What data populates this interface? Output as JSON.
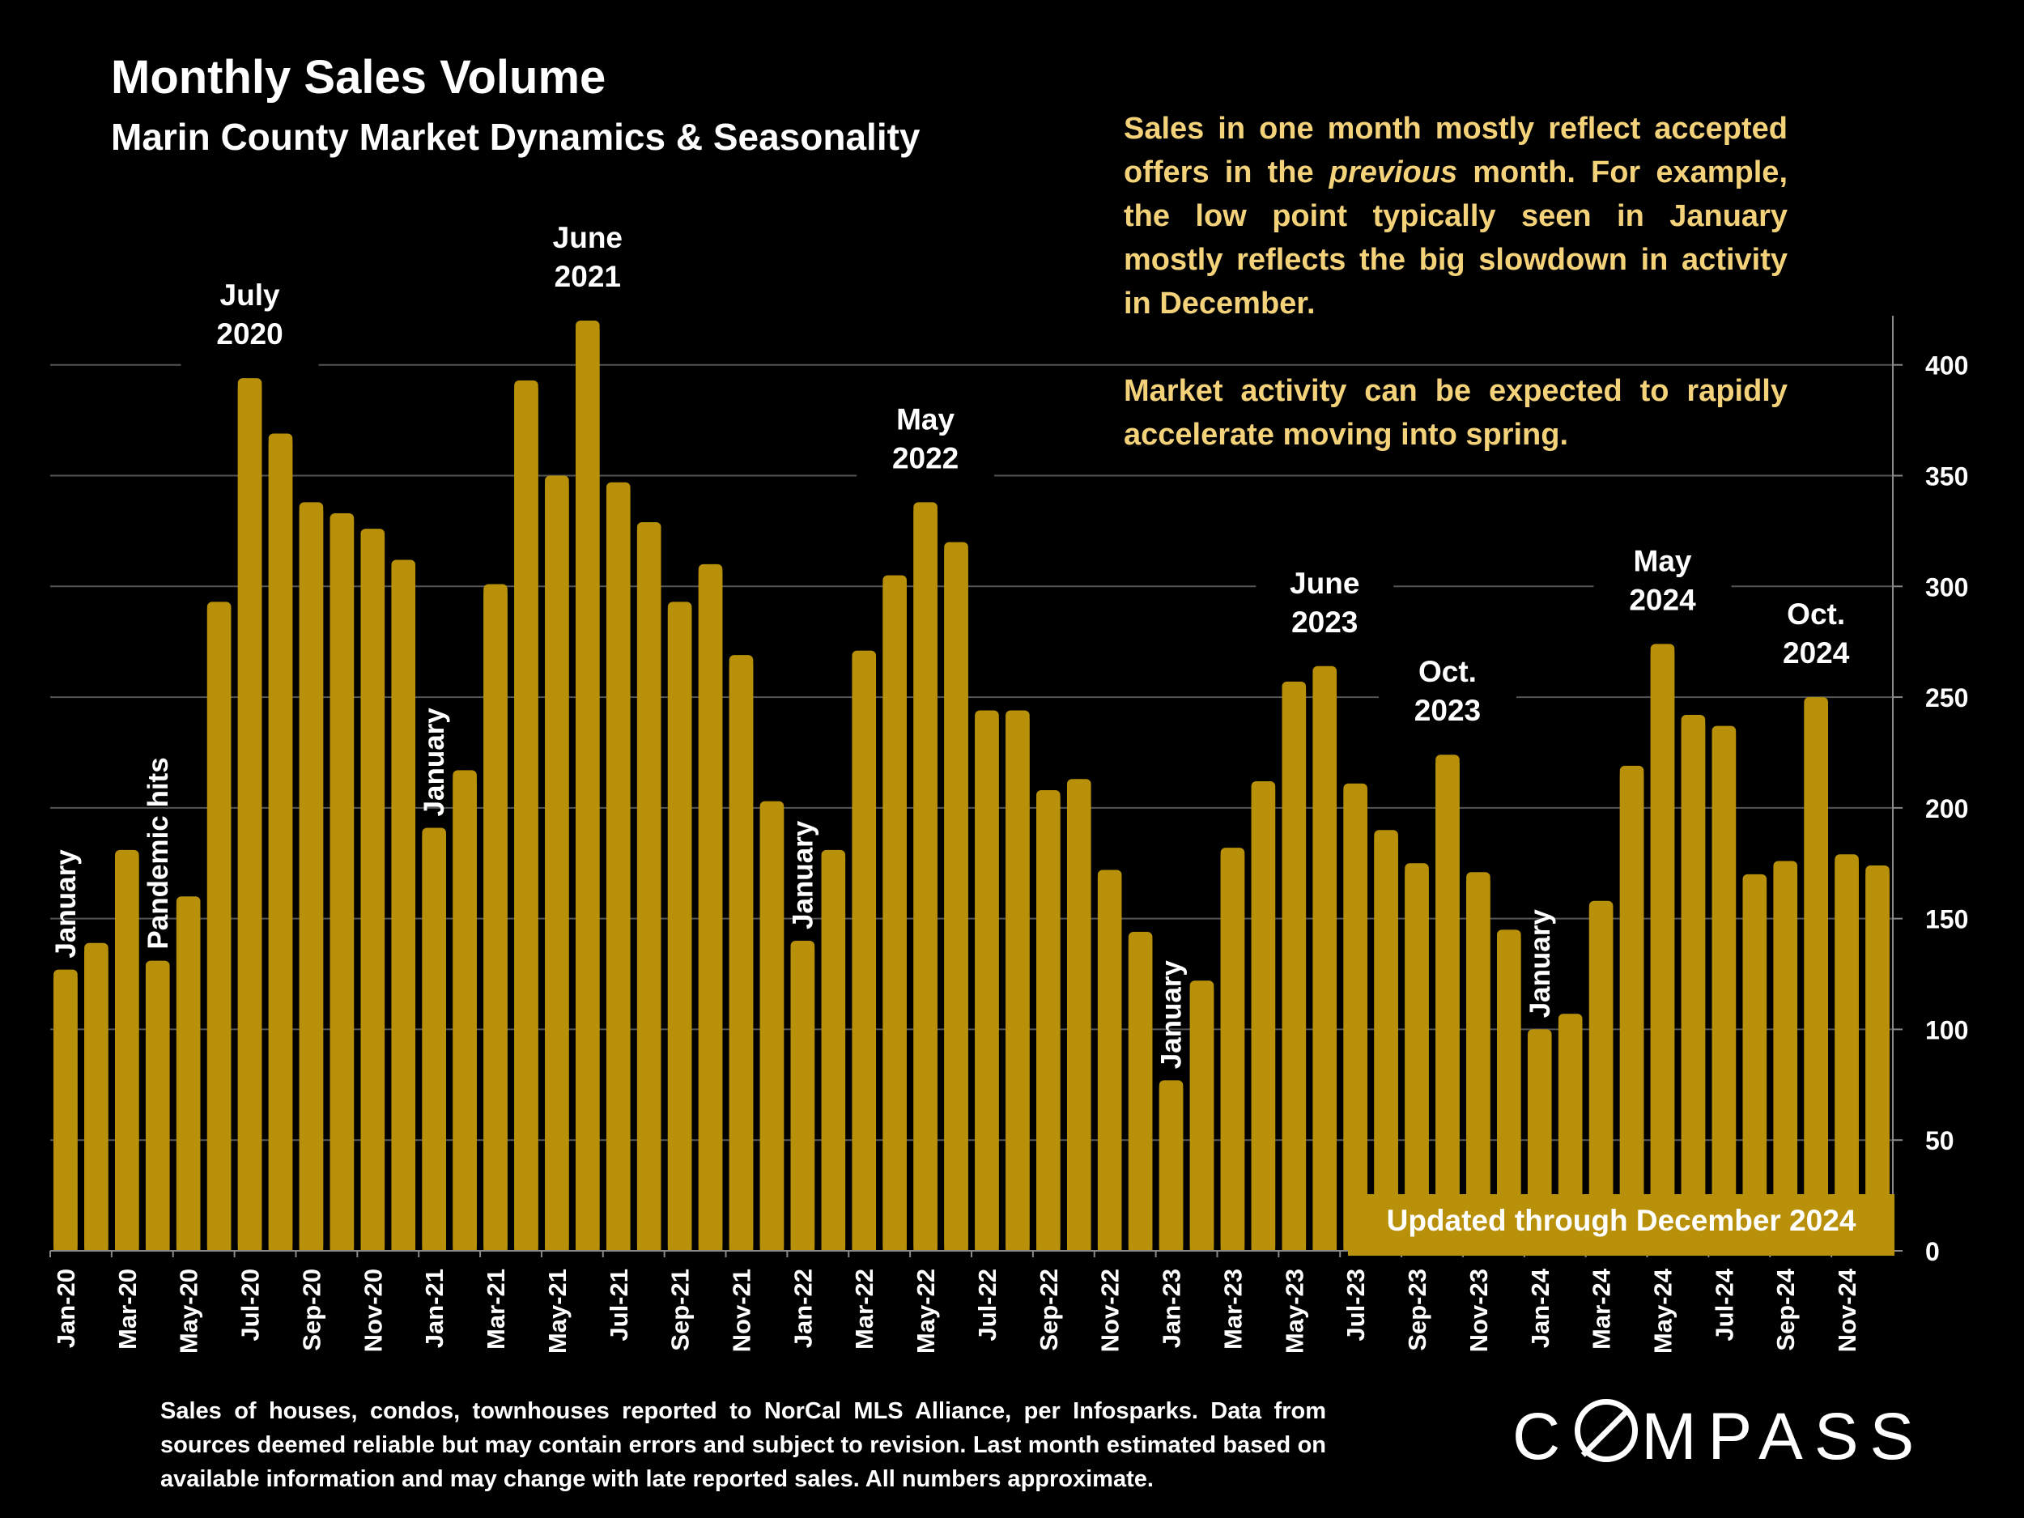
{
  "chart_data": {
    "type": "bar",
    "title": "Monthly Sales Volume",
    "subtitle": "Marin County Market Dynamics & Seasonality",
    "categories": [
      "Jan-20",
      "Feb-20",
      "Mar-20",
      "Apr-20",
      "May-20",
      "Jun-20",
      "Jul-20",
      "Aug-20",
      "Sep-20",
      "Oct-20",
      "Nov-20",
      "Dec-20",
      "Jan-21",
      "Feb-21",
      "Mar-21",
      "Apr-21",
      "May-21",
      "Jun-21",
      "Jul-21",
      "Aug-21",
      "Sep-21",
      "Oct-21",
      "Nov-21",
      "Dec-21",
      "Jan-22",
      "Feb-22",
      "Mar-22",
      "Apr-22",
      "May-22",
      "Jun-22",
      "Jul-22",
      "Aug-22",
      "Sep-22",
      "Oct-22",
      "Nov-22",
      "Dec-22",
      "Jan-23",
      "Feb-23",
      "Mar-23",
      "Apr-23",
      "May-23",
      "Jun-23",
      "Jul-23",
      "Aug-23",
      "Sep-23",
      "Oct-23",
      "Nov-23",
      "Dec-23",
      "Jan-24",
      "Feb-24",
      "Mar-24",
      "Apr-24",
      "May-24",
      "Jun-24",
      "Jul-24",
      "Aug-24",
      "Sep-24",
      "Oct-24",
      "Nov-24",
      "Dec-24"
    ],
    "tick_labels": [
      "Jan-20",
      "Mar-20",
      "May-20",
      "Jul-20",
      "Sep-20",
      "Nov-20",
      "Jan-21",
      "Mar-21",
      "May-21",
      "Jul-21",
      "Sep-21",
      "Nov-21",
      "Jan-22",
      "Mar-22",
      "May-22",
      "Jul-22",
      "Sep-22",
      "Nov-22",
      "Jan-23",
      "Mar-23",
      "May-23",
      "Jul-23",
      "Sep-23",
      "Nov-23",
      "Jan-24",
      "Mar-24",
      "May-24",
      "Jul-24",
      "Sep-24",
      "Nov-24"
    ],
    "values": [
      127,
      139,
      181,
      131,
      160,
      293,
      394,
      369,
      338,
      333,
      326,
      312,
      191,
      217,
      301,
      393,
      350,
      420,
      347,
      329,
      293,
      310,
      269,
      203,
      140,
      181,
      271,
      305,
      338,
      320,
      244,
      244,
      208,
      213,
      172,
      144,
      77,
      122,
      182,
      212,
      257,
      264,
      211,
      190,
      175,
      224,
      171,
      145,
      100,
      107,
      158,
      219,
      274,
      242,
      237,
      170,
      176,
      250,
      179,
      174
    ],
    "ylim": [
      0,
      420
    ],
    "yticks": [
      0,
      50,
      100,
      150,
      200,
      250,
      300,
      350,
      400
    ],
    "ylabel": "",
    "xlabel": "",
    "grid": true,
    "bar_color": "#b8900a",
    "annotations": [
      {
        "bar": 0,
        "text": "January",
        "rotated": true
      },
      {
        "bar": 3,
        "text": "Pandemic hits",
        "rotated": true
      },
      {
        "bar": 6,
        "text": "July 2020",
        "lines": [
          "July",
          "2020"
        ]
      },
      {
        "bar": 12,
        "text": "January",
        "rotated": true
      },
      {
        "bar": 17,
        "text": "June 2021",
        "lines": [
          "June",
          "2021"
        ]
      },
      {
        "bar": 24,
        "text": "January",
        "rotated": true
      },
      {
        "bar": 28,
        "text": "May 2022",
        "lines": [
          "May",
          "2022"
        ]
      },
      {
        "bar": 36,
        "text": "January",
        "rotated": true
      },
      {
        "bar": 41,
        "text": "June 2023",
        "lines": [
          "June",
          "2023"
        ]
      },
      {
        "bar": 45,
        "text": "Oct. 2023",
        "lines": [
          "Oct.",
          "2023"
        ]
      },
      {
        "bar": 48,
        "text": "January",
        "rotated": true
      },
      {
        "bar": 52,
        "text": "May 2024",
        "lines": [
          "May",
          "2024"
        ]
      },
      {
        "bar": 57,
        "text": "Oct. 2024",
        "lines": [
          "Oct.",
          "2024"
        ]
      }
    ]
  },
  "note": {
    "p1_a": "Sales in one month mostly reflect accepted offers in the ",
    "p1_em": "previous",
    "p1_b": " month. For example, the low point typically seen in January mostly reflects the big slowdown in activity in December.",
    "p2": "Market activity can be expected to rapidly accelerate moving into spring."
  },
  "updated_label": "Updated through December 2024",
  "footnote": "Sales of houses, condos, townhouses reported to NorCal MLS Alliance, per Infosparks. Data from sources deemed reliable but may contain errors and subject to revision. Last month estimated based on available information and may change with late reported sales. All numbers approximate.",
  "logo": {
    "before": "C",
    "after": "MPASS",
    "brand_color": "#ffffff"
  },
  "colors": {
    "background": "#000000",
    "bar": "#b8900a",
    "note_text": "#f3d27a",
    "grid": "#555555"
  }
}
